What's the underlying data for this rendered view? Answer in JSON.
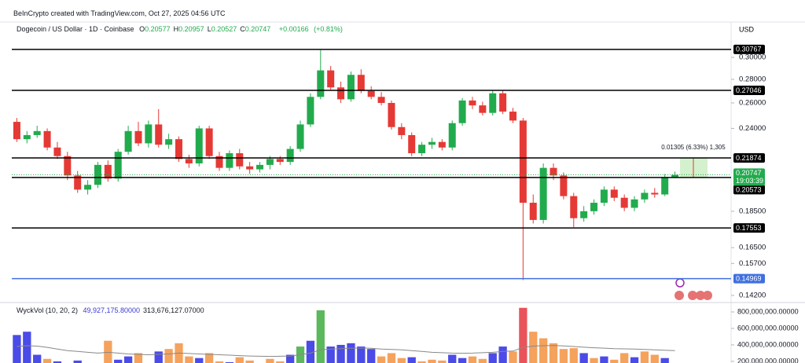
{
  "chart_data": {
    "type": "candlestick",
    "credit": "BeInCrypto created with TradingView.com, Oct 27, 2025 04:56 UTC",
    "symbol": "Dogecoin / US Dollar · 1D · Coinbase",
    "legend_ohlc": [
      {
        "key": "O",
        "value": 0.20577
      },
      {
        "key": "H",
        "value": 0.20957
      },
      {
        "key": "L",
        "value": 0.20527
      },
      {
        "key": "C",
        "value": 0.20747
      }
    ],
    "change": {
      "value": 0.00166,
      "label": "+0.00166"
    },
    "change_pct": {
      "value": 0.81,
      "label": "(+0.81%)"
    },
    "currency": "USD",
    "log_scale": true,
    "up_color": "#22ab4d",
    "down_color": "#e53935",
    "ylim": [
      0.1399,
      0.3353
    ],
    "yticks": [
      {
        "value": 0.3,
        "label": "0.30000"
      },
      {
        "value": 0.28,
        "label": "0.28000"
      },
      {
        "value": 0.26,
        "label": "0.26000"
      },
      {
        "value": 0.24,
        "label": "0.24000"
      },
      {
        "value": 0.185,
        "label": "0.18500"
      },
      {
        "value": 0.165,
        "label": "0.16500"
      },
      {
        "value": 0.157,
        "label": "0.15700"
      },
      {
        "value": 0.142,
        "label": "0.14200"
      }
    ],
    "levels": [
      {
        "value": 0.30767,
        "color": "#000000"
      },
      {
        "value": 0.27046,
        "color": "#000000"
      },
      {
        "value": 0.21874,
        "color": "#000000"
      },
      {
        "value": 0.20573,
        "color": "#000000"
      },
      {
        "value": 0.17553,
        "color": "#000000"
      },
      {
        "value": 0.14969,
        "color": "#3f6fe0"
      }
    ],
    "last_price": 0.20747,
    "last_price_color": "#22ab4d",
    "countdown": "19:03:39",
    "measure": {
      "from": 0.20569,
      "to": 0.21874,
      "label": "0.01305 (6.33%) 1,305",
      "color": "#c8eec0"
    },
    "ohlc": [
      [
        0.245,
        0.248,
        0.23,
        0.232
      ],
      [
        0.232,
        0.238,
        0.229,
        0.235
      ],
      [
        0.235,
        0.242,
        0.233,
        0.238
      ],
      [
        0.238,
        0.24,
        0.224,
        0.226
      ],
      [
        0.226,
        0.23,
        0.218,
        0.22
      ],
      [
        0.22,
        0.223,
        0.204,
        0.207
      ],
      [
        0.207,
        0.21,
        0.196,
        0.198
      ],
      [
        0.198,
        0.204,
        0.195,
        0.201
      ],
      [
        0.201,
        0.216,
        0.199,
        0.214
      ],
      [
        0.214,
        0.217,
        0.203,
        0.205
      ],
      [
        0.205,
        0.225,
        0.203,
        0.223
      ],
      [
        0.223,
        0.242,
        0.221,
        0.238
      ],
      [
        0.238,
        0.245,
        0.227,
        0.229
      ],
      [
        0.229,
        0.246,
        0.226,
        0.243
      ],
      [
        0.243,
        0.255,
        0.226,
        0.228
      ],
      [
        0.228,
        0.236,
        0.225,
        0.232
      ],
      [
        0.232,
        0.234,
        0.216,
        0.218
      ],
      [
        0.218,
        0.221,
        0.212,
        0.215
      ],
      [
        0.215,
        0.242,
        0.213,
        0.24
      ],
      [
        0.24,
        0.242,
        0.218,
        0.22
      ],
      [
        0.22,
        0.223,
        0.21,
        0.212
      ],
      [
        0.212,
        0.224,
        0.21,
        0.222
      ],
      [
        0.222,
        0.225,
        0.211,
        0.213
      ],
      [
        0.213,
        0.216,
        0.208,
        0.211
      ],
      [
        0.211,
        0.216,
        0.209,
        0.214
      ],
      [
        0.214,
        0.22,
        0.211,
        0.218
      ],
      [
        0.218,
        0.22,
        0.214,
        0.216
      ],
      [
        0.216,
        0.227,
        0.214,
        0.225
      ],
      [
        0.225,
        0.246,
        0.223,
        0.243
      ],
      [
        0.243,
        0.268,
        0.241,
        0.265
      ],
      [
        0.265,
        0.307,
        0.263,
        0.288
      ],
      [
        0.288,
        0.292,
        0.271,
        0.273
      ],
      [
        0.273,
        0.278,
        0.26,
        0.263
      ],
      [
        0.263,
        0.287,
        0.261,
        0.284
      ],
      [
        0.284,
        0.289,
        0.268,
        0.27
      ],
      [
        0.27,
        0.274,
        0.263,
        0.265
      ],
      [
        0.265,
        0.269,
        0.258,
        0.26
      ],
      [
        0.26,
        0.262,
        0.239,
        0.241
      ],
      [
        0.241,
        0.244,
        0.232,
        0.235
      ],
      [
        0.235,
        0.237,
        0.22,
        0.222
      ],
      [
        0.222,
        0.23,
        0.22,
        0.228
      ],
      [
        0.228,
        0.233,
        0.225,
        0.23
      ],
      [
        0.23,
        0.232,
        0.224,
        0.226
      ],
      [
        0.226,
        0.246,
        0.224,
        0.244
      ],
      [
        0.244,
        0.264,
        0.242,
        0.262
      ],
      [
        0.262,
        0.265,
        0.255,
        0.258
      ],
      [
        0.258,
        0.261,
        0.25,
        0.252
      ],
      [
        0.252,
        0.27,
        0.25,
        0.268
      ],
      [
        0.268,
        0.27,
        0.251,
        0.253
      ],
      [
        0.253,
        0.256,
        0.244,
        0.246
      ],
      [
        0.246,
        0.248,
        0.149,
        0.19
      ],
      [
        0.19,
        0.195,
        0.178,
        0.18
      ],
      [
        0.18,
        0.215,
        0.178,
        0.212
      ],
      [
        0.212,
        0.215,
        0.204,
        0.207
      ],
      [
        0.207,
        0.209,
        0.192,
        0.194
      ],
      [
        0.194,
        0.196,
        0.176,
        0.181
      ],
      [
        0.181,
        0.188,
        0.179,
        0.185
      ],
      [
        0.185,
        0.192,
        0.183,
        0.19
      ],
      [
        0.19,
        0.2,
        0.188,
        0.198
      ],
      [
        0.198,
        0.2,
        0.191,
        0.193
      ],
      [
        0.193,
        0.195,
        0.185,
        0.187
      ],
      [
        0.187,
        0.194,
        0.185,
        0.192
      ],
      [
        0.192,
        0.198,
        0.19,
        0.196
      ],
      [
        0.196,
        0.199,
        0.193,
        0.195
      ],
      [
        0.195,
        0.208,
        0.194,
        0.206
      ],
      [
        0.20577,
        0.20957,
        0.20527,
        0.20747
      ]
    ],
    "volume_title": "WyckVol (10, 20, 2)",
    "volume_readouts": [
      {
        "value": 49927175.8,
        "label": "49,927,175.80000",
        "color": "#3a3ad8"
      },
      {
        "value": 313676127.07,
        "label": "313,676,127.07000",
        "color": "#131722"
      }
    ],
    "volume_ylim": [
      180000000,
      886000000
    ],
    "volume_yticks": [
      {
        "value": 800000000,
        "label": "800,000,000.00000"
      },
      {
        "value": 600000000,
        "label": "600,000,000.00000"
      },
      {
        "value": 400000000,
        "label": "400,000,000.00000"
      },
      {
        "value": 200000000,
        "label": "200,000,000.00000"
      }
    ],
    "volume": [
      520000000,
      560000000,
      280000000,
      230000000,
      200000000,
      180000000,
      210000000,
      170000000,
      150000000,
      450000000,
      220000000,
      260000000,
      300000000,
      180000000,
      320000000,
      350000000,
      420000000,
      260000000,
      240000000,
      300000000,
      200000000,
      190000000,
      250000000,
      210000000,
      180000000,
      230000000,
      200000000,
      280000000,
      380000000,
      450000000,
      820000000,
      380000000,
      400000000,
      420000000,
      380000000,
      350000000,
      260000000,
      300000000,
      240000000,
      250000000,
      200000000,
      220000000,
      210000000,
      280000000,
      240000000,
      260000000,
      230000000,
      300000000,
      380000000,
      320000000,
      850000000,
      560000000,
      480000000,
      420000000,
      350000000,
      360000000,
      300000000,
      240000000,
      260000000,
      220000000,
      300000000,
      250000000,
      320000000,
      280000000,
      240000000,
      50000000
    ],
    "volume_colors": [
      "#4b4be8",
      "#4b4be8",
      "#4b4be8",
      "#f5a25d",
      "#4b4be8",
      "#4b4be8",
      "#4b4be8",
      "#f5a25d",
      "#4b4be8",
      "#f5a25d",
      "#4b4be8",
      "#4b4be8",
      "#f5a25d",
      "#4b4be8",
      "#4b4be8",
      "#f5a25d",
      "#f5a25d",
      "#f5a25d",
      "#4b4be8",
      "#f5a25d",
      "#f5a25d",
      "#4b4be8",
      "#f5a25d",
      "#f5a25d",
      "#4b4be8",
      "#f5a25d",
      "#f5a25d",
      "#4b4be8",
      "#5cb85c",
      "#4b4be8",
      "#5cb85c",
      "#4b4be8",
      "#4b4be8",
      "#4b4be8",
      "#4b4be8",
      "#4b4be8",
      "#f5a25d",
      "#f5a25d",
      "#f5a25d",
      "#4b4be8",
      "#f5a25d",
      "#f5a25d",
      "#f5a25d",
      "#4b4be8",
      "#4b4be8",
      "#f5a25d",
      "#f5a25d",
      "#4b4be8",
      "#4b4be8",
      "#f5a25d",
      "#e8545a",
      "#f5a25d",
      "#f5a25d",
      "#f5a25d",
      "#f5a25d",
      "#f5a25d",
      "#4b4be8",
      "#f5a25d",
      "#4b4be8",
      "#f5a25d",
      "#f5a25d",
      "#4b4be8",
      "#f5a25d",
      "#f5a25d",
      "#4b4be8",
      "#4b4be8"
    ],
    "volume_ma_color": "#888888",
    "volume_ma": [
      380000000,
      390000000,
      385000000,
      370000000,
      350000000,
      330000000,
      320000000,
      310000000,
      300000000,
      310000000,
      300000000,
      290000000,
      285000000,
      280000000,
      285000000,
      290000000,
      300000000,
      295000000,
      290000000,
      285000000,
      280000000,
      275000000,
      270000000,
      265000000,
      262000000,
      260000000,
      262000000,
      265000000,
      280000000,
      300000000,
      340000000,
      350000000,
      355000000,
      360000000,
      362000000,
      358000000,
      350000000,
      345000000,
      340000000,
      330000000,
      320000000,
      310000000,
      305000000,
      300000000,
      298000000,
      300000000,
      305000000,
      310000000,
      320000000,
      325000000,
      370000000,
      385000000,
      390000000,
      392000000,
      388000000,
      380000000,
      372000000,
      365000000,
      360000000,
      355000000,
      352000000,
      350000000,
      345000000,
      340000000,
      335000000,
      330000000
    ]
  }
}
